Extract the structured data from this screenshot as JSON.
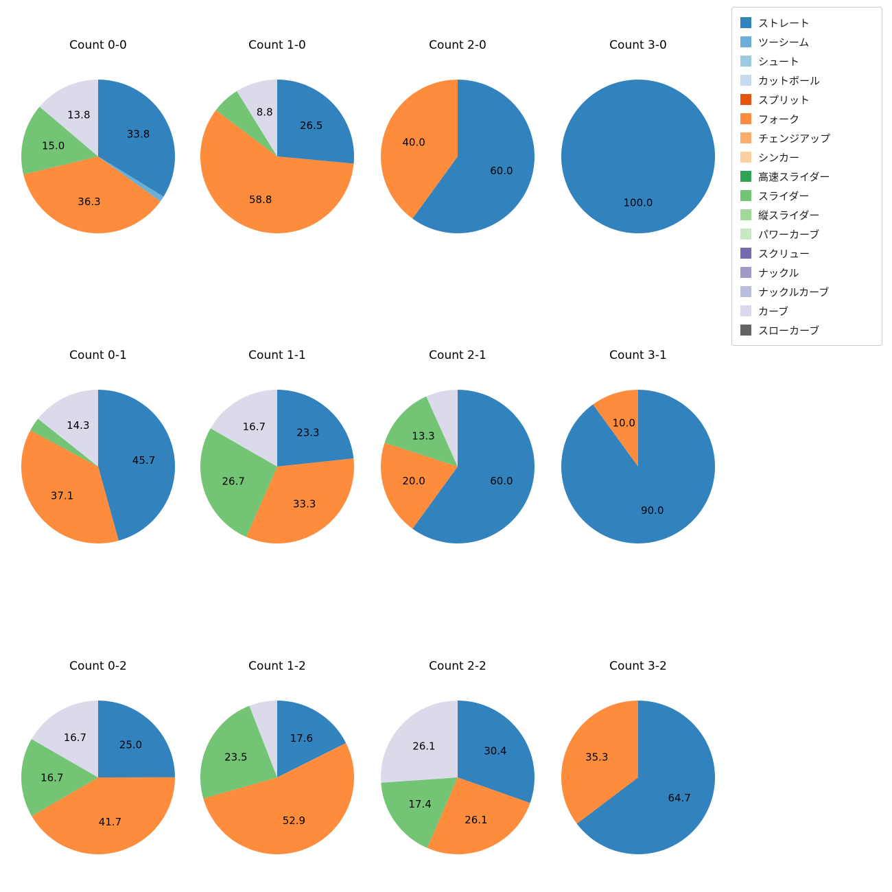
{
  "figure": {
    "background": "#ffffff"
  },
  "legend": {
    "entries": [
      {
        "label": "ストレート",
        "color": "#3182bd"
      },
      {
        "label": "ツーシーム",
        "color": "#6baed6"
      },
      {
        "label": "シュート",
        "color": "#9ecae1"
      },
      {
        "label": "カットボール",
        "color": "#c6dbef"
      },
      {
        "label": "スプリット",
        "color": "#e6550d"
      },
      {
        "label": "フォーク",
        "color": "#fd8d3c"
      },
      {
        "label": "チェンジアップ",
        "color": "#fdae6b"
      },
      {
        "label": "シンカー",
        "color": "#fdd0a2"
      },
      {
        "label": "高速スライダー",
        "color": "#31a354"
      },
      {
        "label": "スライダー",
        "color": "#74c476"
      },
      {
        "label": "縦スライダー",
        "color": "#a1d99b"
      },
      {
        "label": "パワーカーブ",
        "color": "#c7e9c0"
      },
      {
        "label": "スクリュー",
        "color": "#756bb1"
      },
      {
        "label": "ナックル",
        "color": "#9e9ac8"
      },
      {
        "label": "ナックルカーブ",
        "color": "#bcbddc"
      },
      {
        "label": "カーブ",
        "color": "#dadaeb"
      },
      {
        "label": "スローカーブ",
        "color": "#636363"
      }
    ]
  },
  "chart_data": {
    "type": "pie",
    "unit": "percent",
    "start_angle": 90,
    "clockwise": true,
    "label_distance": 0.6,
    "grid": {
      "rows": 3,
      "cols": 4
    },
    "colors": {
      "ストレート": "#3182bd",
      "ツーシーム": "#6baed6",
      "シュート": "#9ecae1",
      "カットボール": "#c6dbef",
      "スプリット": "#e6550d",
      "フォーク": "#fd8d3c",
      "チェンジアップ": "#fdae6b",
      "シンカー": "#fdd0a2",
      "高速スライダー": "#31a354",
      "スライダー": "#74c476",
      "縦スライダー": "#a1d99b",
      "パワーカーブ": "#c7e9c0",
      "スクリュー": "#756bb1",
      "ナックル": "#9e9ac8",
      "ナックルカーブ": "#bcbddc",
      "カーブ": "#dadaeb",
      "スローカーブ": "#636363"
    },
    "charts": [
      {
        "title": "Count 0-0",
        "slices": [
          {
            "name": "ストレート",
            "value": 33.8,
            "label": "33.8"
          },
          {
            "name": "ツーシーム",
            "value": 1.2,
            "label": ""
          },
          {
            "name": "フォーク",
            "value": 36.3,
            "label": "36.3"
          },
          {
            "name": "スライダー",
            "value": 15.0,
            "label": "15.0"
          },
          {
            "name": "カーブ",
            "value": 13.8,
            "label": "13.8"
          }
        ]
      },
      {
        "title": "Count 1-0",
        "slices": [
          {
            "name": "ストレート",
            "value": 26.5,
            "label": "26.5"
          },
          {
            "name": "フォーク",
            "value": 58.8,
            "label": "58.8"
          },
          {
            "name": "スライダー",
            "value": 5.9,
            "label": ""
          },
          {
            "name": "カーブ",
            "value": 8.8,
            "label": "8.8"
          }
        ]
      },
      {
        "title": "Count 2-0",
        "slices": [
          {
            "name": "ストレート",
            "value": 60.0,
            "label": "60.0"
          },
          {
            "name": "フォーク",
            "value": 40.0,
            "label": "40.0"
          }
        ]
      },
      {
        "title": "Count 3-0",
        "slices": [
          {
            "name": "ストレート",
            "value": 100.0,
            "label": "100.0"
          }
        ]
      },
      {
        "title": "Count 0-1",
        "slices": [
          {
            "name": "ストレート",
            "value": 45.7,
            "label": "45.7"
          },
          {
            "name": "フォーク",
            "value": 37.1,
            "label": "37.1"
          },
          {
            "name": "スライダー",
            "value": 2.9,
            "label": ""
          },
          {
            "name": "カーブ",
            "value": 14.3,
            "label": "14.3"
          }
        ]
      },
      {
        "title": "Count 1-1",
        "slices": [
          {
            "name": "ストレート",
            "value": 23.3,
            "label": "23.3"
          },
          {
            "name": "フォーク",
            "value": 33.3,
            "label": "33.3"
          },
          {
            "name": "スライダー",
            "value": 26.7,
            "label": "26.7"
          },
          {
            "name": "カーブ",
            "value": 16.7,
            "label": "16.7"
          }
        ]
      },
      {
        "title": "Count 2-1",
        "slices": [
          {
            "name": "ストレート",
            "value": 60.0,
            "label": "60.0"
          },
          {
            "name": "フォーク",
            "value": 20.0,
            "label": "20.0"
          },
          {
            "name": "スライダー",
            "value": 13.3,
            "label": "13.3"
          },
          {
            "name": "カーブ",
            "value": 6.7,
            "label": ""
          }
        ]
      },
      {
        "title": "Count 3-1",
        "slices": [
          {
            "name": "ストレート",
            "value": 90.0,
            "label": "90.0"
          },
          {
            "name": "フォーク",
            "value": 10.0,
            "label": "10.0"
          }
        ]
      },
      {
        "title": "Count 0-2",
        "slices": [
          {
            "name": "ストレート",
            "value": 25.0,
            "label": "25.0"
          },
          {
            "name": "フォーク",
            "value": 41.7,
            "label": "41.7"
          },
          {
            "name": "スライダー",
            "value": 16.7,
            "label": "16.7"
          },
          {
            "name": "カーブ",
            "value": 16.7,
            "label": "16.7"
          }
        ]
      },
      {
        "title": "Count 1-2",
        "slices": [
          {
            "name": "ストレート",
            "value": 17.6,
            "label": "17.6"
          },
          {
            "name": "フォーク",
            "value": 52.9,
            "label": "52.9"
          },
          {
            "name": "スライダー",
            "value": 23.5,
            "label": "23.5"
          },
          {
            "name": "カーブ",
            "value": 5.9,
            "label": ""
          }
        ]
      },
      {
        "title": "Count 2-2",
        "slices": [
          {
            "name": "ストレート",
            "value": 30.4,
            "label": "30.4"
          },
          {
            "name": "フォーク",
            "value": 26.1,
            "label": "26.1"
          },
          {
            "name": "スライダー",
            "value": 17.4,
            "label": "17.4"
          },
          {
            "name": "カーブ",
            "value": 26.1,
            "label": "26.1"
          }
        ]
      },
      {
        "title": "Count 3-2",
        "slices": [
          {
            "name": "ストレート",
            "value": 64.7,
            "label": "64.7"
          },
          {
            "name": "フォーク",
            "value": 35.3,
            "label": "35.3"
          }
        ]
      }
    ]
  }
}
